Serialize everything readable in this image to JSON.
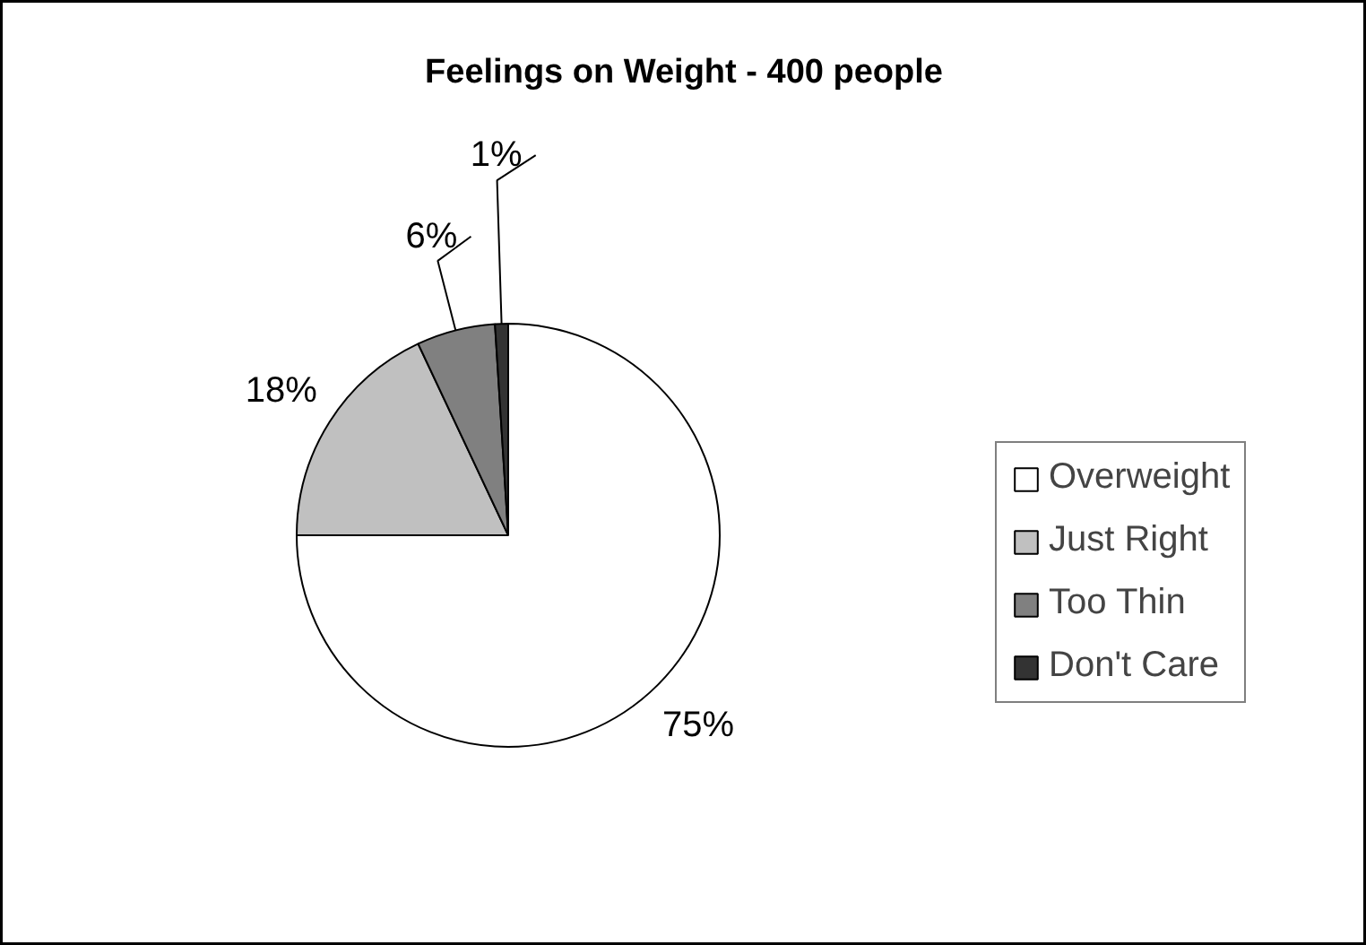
{
  "chart_data": {
    "type": "pie",
    "title": "Feelings on Weight - 400 people",
    "categories": [
      "Overweight",
      "Just Right",
      "Too Thin",
      "Don't Care"
    ],
    "values": [
      75,
      18,
      6,
      1
    ],
    "colors": [
      "#ffffff",
      "#c0c0c0",
      "#808080",
      "#333333"
    ],
    "value_labels": [
      "75%",
      "18%",
      "6%",
      "1%"
    ],
    "legend": "right"
  }
}
